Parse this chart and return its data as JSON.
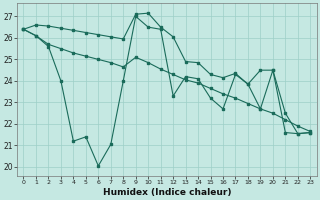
{
  "xlabel": "Humidex (Indice chaleur)",
  "bg_color": "#c5e8e2",
  "line_color": "#1a6b5a",
  "grid_color": "#9ecfc7",
  "x_ticks": [
    0,
    1,
    2,
    3,
    4,
    5,
    6,
    7,
    8,
    9,
    10,
    11,
    12,
    13,
    14,
    15,
    16,
    17,
    18,
    19,
    20,
    21,
    22,
    23
  ],
  "y_ticks": [
    20,
    21,
    22,
    23,
    24,
    25,
    26,
    27
  ],
  "ylim": [
    19.6,
    27.6
  ],
  "xlim": [
    -0.5,
    23.5
  ],
  "line1_x": [
    0,
    1,
    2,
    3,
    4,
    5,
    6,
    7,
    8,
    9,
    10,
    11,
    12,
    13,
    14,
    15,
    16,
    17,
    18,
    19,
    20,
    21,
    22,
    23
  ],
  "line1_y": [
    26.4,
    26.6,
    26.55,
    26.45,
    26.35,
    26.25,
    26.15,
    26.05,
    25.95,
    27.1,
    27.15,
    26.5,
    26.05,
    24.9,
    24.85,
    24.3,
    24.15,
    24.35,
    23.85,
    24.5,
    24.5,
    22.5,
    21.55,
    21.6
  ],
  "line2_x": [
    0,
    1,
    2,
    3,
    4,
    5,
    6,
    7,
    8,
    9,
    10,
    11,
    12,
    13,
    14,
    15,
    16,
    17,
    18,
    19,
    20,
    21,
    22,
    23
  ],
  "line2_y": [
    26.4,
    26.1,
    25.7,
    25.5,
    25.3,
    25.15,
    25.0,
    24.85,
    24.65,
    25.1,
    24.85,
    24.55,
    24.3,
    24.05,
    23.9,
    23.65,
    23.4,
    23.2,
    22.95,
    22.7,
    22.5,
    22.2,
    21.9,
    21.65
  ],
  "line3_x": [
    0,
    1,
    2,
    3,
    4,
    5,
    6,
    7,
    8,
    9,
    10,
    11,
    12,
    13,
    14,
    15,
    16,
    17,
    18,
    19,
    20,
    21,
    22,
    23
  ],
  "line3_y": [
    26.4,
    26.1,
    25.6,
    24.0,
    21.2,
    21.4,
    20.05,
    21.05,
    24.0,
    27.0,
    26.5,
    26.4,
    23.3,
    24.2,
    24.1,
    23.2,
    22.7,
    24.3,
    23.85,
    22.7,
    24.5,
    21.6,
    21.55,
    21.6
  ]
}
